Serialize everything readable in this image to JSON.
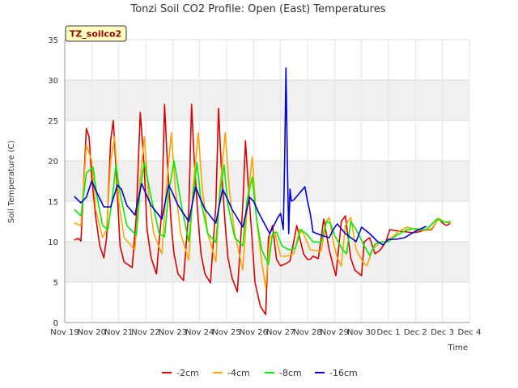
{
  "chart_data": {
    "type": "line",
    "title": "Tonzi Soil CO2 Profile: Open (East) Temperatures",
    "xlabel": "Time",
    "ylabel": "Soil Temperature (C)",
    "badge": "TZ_soilco2",
    "ylim": [
      0,
      35
    ],
    "yticks": [
      0,
      5,
      10,
      15,
      20,
      25,
      30,
      35
    ],
    "xlim": [
      0,
      15
    ],
    "xticks": [
      {
        "x": 0,
        "label": "Nov 19"
      },
      {
        "x": 1,
        "label": "Nov 20"
      },
      {
        "x": 2,
        "label": "Nov 21"
      },
      {
        "x": 3,
        "label": "Nov 22"
      },
      {
        "x": 4,
        "label": "Nov 23"
      },
      {
        "x": 5,
        "label": "Nov 24"
      },
      {
        "x": 6,
        "label": "Nov 25"
      },
      {
        "x": 7,
        "label": "Nov 26"
      },
      {
        "x": 8,
        "label": "Nov 27"
      },
      {
        "x": 9,
        "label": "Nov 28"
      },
      {
        "x": 10,
        "label": "Nov 29"
      },
      {
        "x": 11,
        "label": "Nov 30"
      },
      {
        "x": 12,
        "label": "Dec 1"
      },
      {
        "x": 13,
        "label": "Dec 2"
      },
      {
        "x": 14,
        "label": "Dec 3"
      },
      {
        "x": 15,
        "label": "Dec 4"
      }
    ],
    "grid": true,
    "legend_position": "bottom",
    "series": [
      {
        "name": "-2cm",
        "color": "#dd0000",
        "x": [
          0.35,
          0.5,
          0.6,
          0.8,
          0.9,
          1.0,
          1.15,
          1.3,
          1.45,
          1.55,
          1.7,
          1.8,
          1.95,
          2.05,
          2.2,
          2.5,
          2.65,
          2.8,
          2.95,
          3.05,
          3.2,
          3.4,
          3.6,
          3.7,
          3.8,
          3.95,
          4.05,
          4.2,
          4.4,
          4.6,
          4.7,
          4.8,
          4.95,
          5.05,
          5.2,
          5.4,
          5.6,
          5.7,
          5.8,
          5.95,
          6.05,
          6.2,
          6.4,
          6.6,
          6.7,
          6.8,
          6.95,
          7.05,
          7.25,
          7.45,
          7.55,
          7.7,
          7.85,
          8.0,
          8.2,
          8.35,
          8.6,
          8.85,
          9.0,
          9.1,
          9.2,
          9.4,
          9.6,
          9.8,
          9.95,
          10.05,
          10.25,
          10.4,
          10.6,
          10.75,
          11.0,
          11.1,
          11.3,
          11.5,
          11.7,
          11.9,
          12.05,
          12.2,
          12.4,
          12.7,
          12.9,
          13.1,
          13.3,
          13.6,
          13.85,
          14.0,
          14.15,
          14.3
        ],
        "y": [
          10.2,
          10.4,
          10.1,
          24.0,
          23.0,
          18.0,
          13.0,
          9.5,
          8.0,
          10.5,
          22.5,
          25.0,
          16.0,
          9.5,
          7.5,
          6.8,
          13.0,
          26.0,
          19.0,
          11.5,
          8.0,
          6.0,
          14.0,
          27.0,
          20.0,
          12.0,
          8.5,
          6.0,
          5.2,
          14.0,
          27.0,
          20.0,
          12.5,
          8.5,
          6.0,
          4.9,
          14.5,
          26.5,
          19.5,
          12.0,
          8.0,
          5.5,
          3.8,
          14.5,
          22.5,
          17.0,
          10.0,
          5.0,
          2.0,
          1.0,
          10.5,
          12.0,
          7.8,
          7.0,
          7.3,
          7.6,
          12.0,
          8.5,
          7.8,
          7.8,
          8.2,
          7.9,
          12.8,
          9.0,
          7.0,
          5.8,
          12.5,
          13.2,
          8.0,
          6.5,
          5.8,
          10.0,
          10.5,
          8.5,
          9.0,
          10.0,
          11.5,
          11.4,
          11.3,
          11.2,
          11.1,
          11.2,
          11.4,
          11.5,
          12.9,
          12.3,
          12.0,
          12.3
        ]
      },
      {
        "name": "-4cm",
        "color": "#ffa500",
        "x": [
          0.35,
          0.6,
          0.8,
          1.0,
          1.15,
          1.4,
          1.55,
          1.7,
          1.85,
          2.0,
          2.2,
          2.6,
          2.75,
          2.95,
          3.1,
          3.3,
          3.6,
          3.75,
          3.95,
          4.1,
          4.3,
          4.6,
          4.75,
          4.95,
          5.1,
          5.3,
          5.6,
          5.75,
          5.95,
          6.1,
          6.3,
          6.6,
          6.8,
          6.95,
          7.1,
          7.3,
          7.45,
          7.6,
          7.8,
          8.0,
          8.2,
          8.5,
          8.7,
          8.85,
          9.1,
          9.5,
          9.7,
          9.8,
          9.95,
          10.1,
          10.25,
          10.4,
          10.6,
          10.8,
          11.05,
          11.2,
          11.4,
          11.7,
          11.9,
          12.1,
          12.4,
          12.7,
          13.0,
          13.3,
          13.6,
          13.85,
          14.1,
          14.3
        ],
        "y": [
          12.3,
          12.0,
          22.0,
          20.0,
          14.0,
          10.5,
          11.5,
          20.0,
          23.0,
          15.0,
          10.5,
          9.0,
          16.0,
          23.0,
          16.0,
          11.0,
          8.5,
          16.0,
          23.5,
          16.5,
          11.0,
          7.7,
          16.5,
          23.5,
          16.5,
          11.0,
          7.5,
          16.5,
          23.5,
          16.5,
          11.0,
          6.5,
          16.0,
          20.5,
          13.0,
          7.5,
          4.3,
          10.5,
          11.0,
          8.2,
          8.2,
          8.5,
          11.5,
          11.0,
          9.0,
          8.8,
          12.5,
          13.0,
          10.0,
          8.0,
          7.0,
          12.0,
          13.0,
          9.0,
          7.5,
          7.0,
          9.0,
          10.0,
          10.0,
          10.5,
          11.3,
          11.8,
          11.5,
          11.4,
          11.6,
          12.9,
          12.4,
          12.3
        ]
      },
      {
        "name": "-8cm",
        "color": "#00ee00",
        "x": [
          0.35,
          0.6,
          0.8,
          1.05,
          1.2,
          1.4,
          1.6,
          1.75,
          1.9,
          2.05,
          2.3,
          2.65,
          2.8,
          2.95,
          3.2,
          3.5,
          3.7,
          3.85,
          4.05,
          4.35,
          4.6,
          4.75,
          4.9,
          5.05,
          5.3,
          5.6,
          5.75,
          5.9,
          6.05,
          6.3,
          6.6,
          6.75,
          6.95,
          7.1,
          7.3,
          7.55,
          7.7,
          7.85,
          8.05,
          8.3,
          8.55,
          8.75,
          8.95,
          9.2,
          9.5,
          9.7,
          9.85,
          10.0,
          10.3,
          10.45,
          10.6,
          10.8,
          11.1,
          11.3,
          11.5,
          11.8,
          12.0,
          12.3,
          12.7,
          13.0,
          13.4,
          13.8,
          14.1,
          14.3
        ],
        "y": [
          14.0,
          13.2,
          18.5,
          19.2,
          15.5,
          12.0,
          11.5,
          15.0,
          19.5,
          16.0,
          12.0,
          10.8,
          16.5,
          19.8,
          15.5,
          11.0,
          10.6,
          16.0,
          20.0,
          14.0,
          10.0,
          15.5,
          19.8,
          15.0,
          11.0,
          9.9,
          16.0,
          19.5,
          14.5,
          10.5,
          9.5,
          15.0,
          18.0,
          13.0,
          9.0,
          7.2,
          11.0,
          11.2,
          9.5,
          9.0,
          9.2,
          11.5,
          11.0,
          10.0,
          9.9,
          12.5,
          12.3,
          10.8,
          9.0,
          8.5,
          12.5,
          11.5,
          9.5,
          8.3,
          9.7,
          10.0,
          10.0,
          10.8,
          11.5,
          11.6,
          11.5,
          12.8,
          12.4,
          12.5
        ]
      },
      {
        "name": "-16cm",
        "color": "#0000dd",
        "x": [
          0.35,
          0.6,
          0.8,
          1.0,
          1.2,
          1.45,
          1.7,
          1.95,
          2.1,
          2.3,
          2.6,
          2.85,
          3.0,
          3.2,
          3.6,
          3.85,
          4.0,
          4.2,
          4.6,
          4.85,
          5.0,
          5.2,
          5.6,
          5.85,
          6.0,
          6.2,
          6.6,
          6.85,
          7.0,
          7.2,
          7.6,
          7.75,
          7.9,
          8.0,
          8.1,
          8.15,
          8.2,
          8.25,
          8.3,
          8.35,
          8.4,
          8.5,
          8.9,
          9.0,
          9.1,
          9.2,
          9.5,
          9.8,
          9.95,
          10.1,
          10.4,
          10.6,
          10.8,
          11.0,
          11.3,
          11.6,
          11.8,
          12.0,
          12.3,
          12.6,
          13.0,
          13.4
        ],
        "y": [
          15.6,
          14.8,
          15.5,
          17.5,
          16.0,
          14.3,
          14.3,
          17.0,
          16.5,
          14.5,
          13.3,
          17.2,
          16.0,
          14.5,
          12.8,
          17.0,
          16.0,
          14.5,
          12.5,
          16.8,
          15.5,
          14.0,
          12.3,
          16.5,
          15.5,
          14.0,
          11.8,
          15.5,
          15.0,
          13.5,
          11.0,
          12.0,
          13.0,
          13.5,
          11.5,
          20.0,
          31.5,
          20.0,
          11.0,
          16.5,
          15.0,
          15.2,
          16.8,
          15.0,
          13.5,
          11.2,
          10.8,
          10.5,
          11.5,
          12.2,
          11.0,
          10.5,
          10.0,
          11.8,
          11.0,
          10.0,
          9.6,
          10.3,
          10.3,
          10.5,
          11.3,
          11.9
        ]
      }
    ]
  }
}
